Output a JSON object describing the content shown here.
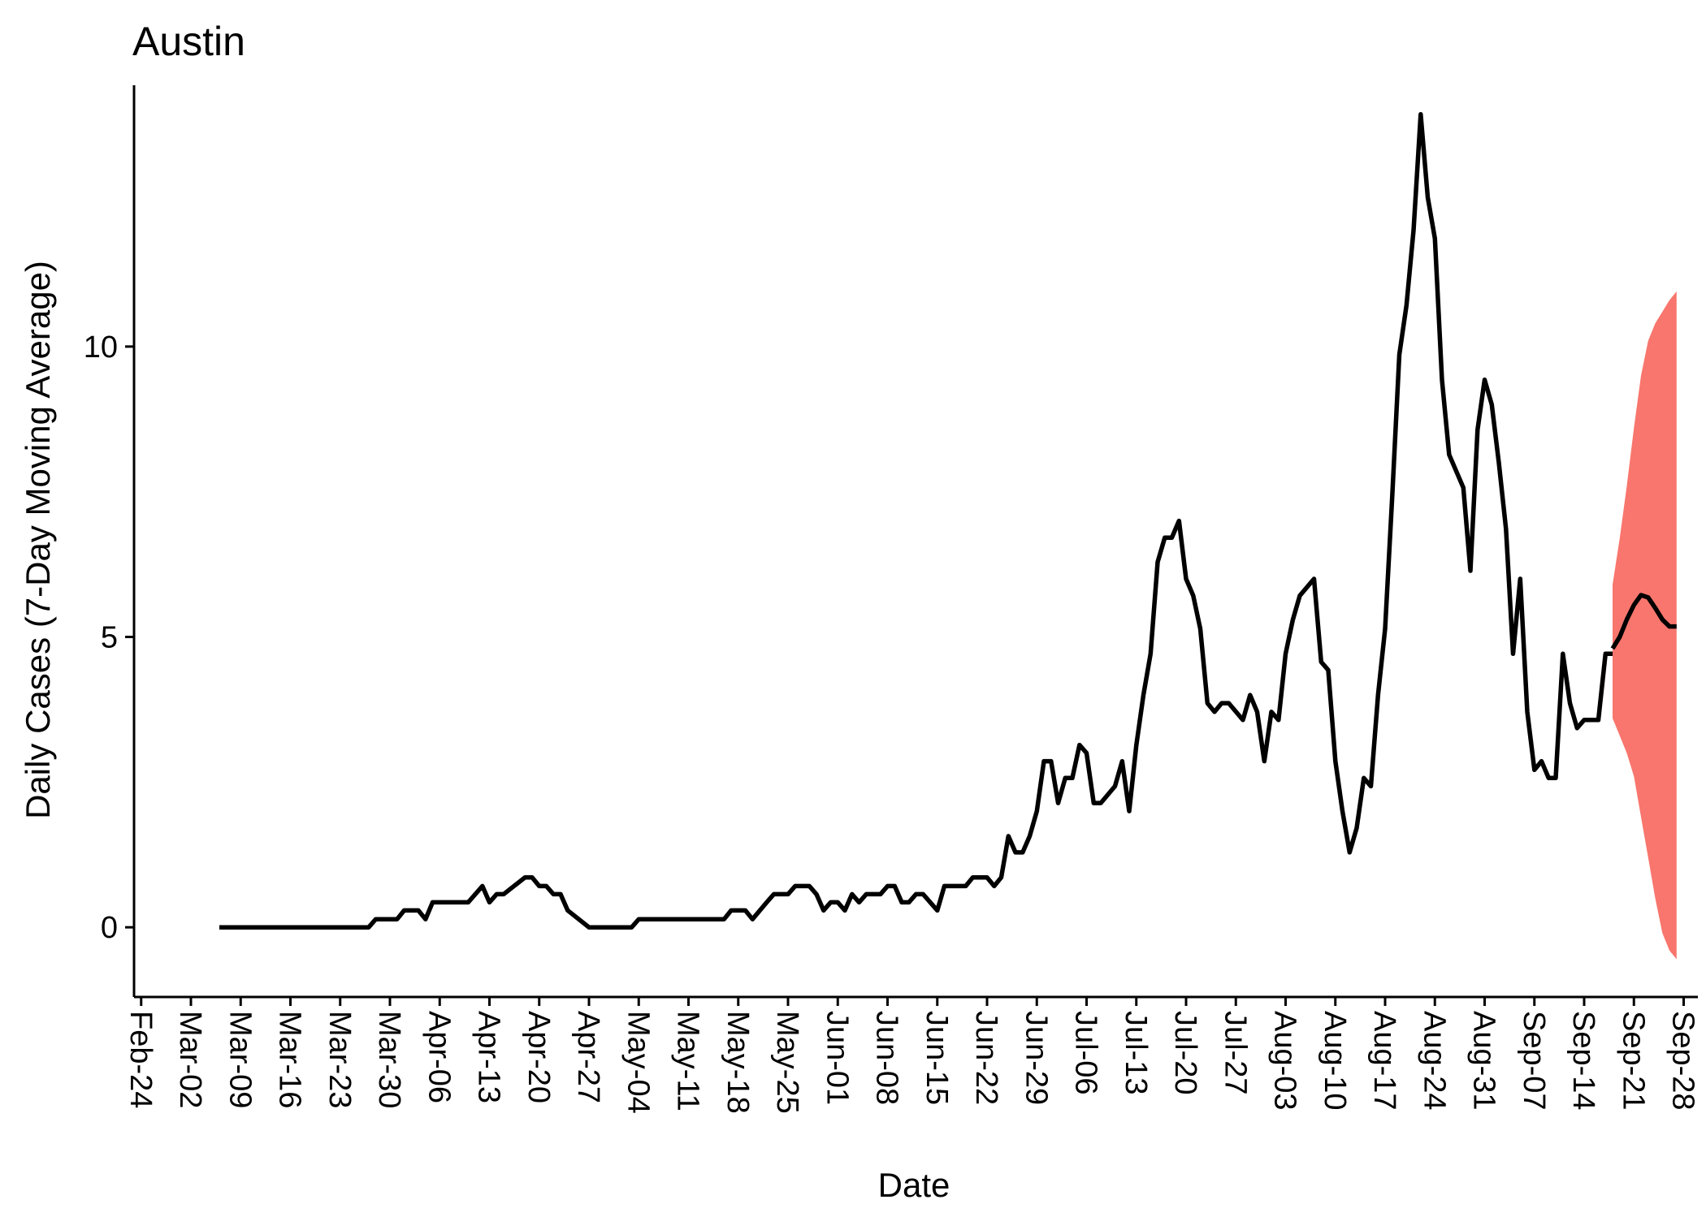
{
  "chart_data": {
    "type": "line",
    "title": "Austin",
    "xlabel": "Date",
    "ylabel": "Daily Cases (7-Day Moving Average)",
    "x_tick_labels": [
      "Feb-24",
      "Mar-02",
      "Mar-09",
      "Mar-16",
      "Mar-23",
      "Mar-30",
      "Apr-06",
      "Apr-13",
      "Apr-20",
      "Apr-27",
      "May-04",
      "May-11",
      "May-18",
      "May-25",
      "Jun-01",
      "Jun-08",
      "Jun-15",
      "Jun-22",
      "Jun-29",
      "Jul-06",
      "Jul-13",
      "Jul-20",
      "Jul-27",
      "Aug-03",
      "Aug-10",
      "Aug-17",
      "Aug-24",
      "Aug-31",
      "Sep-07",
      "Sep-14",
      "Sep-21",
      "Sep-28"
    ],
    "y_ticks": [
      0,
      5,
      10
    ],
    "ylim": [
      -1.2,
      14.5
    ],
    "xlim": [
      "2020-02-23",
      "2020-09-30"
    ],
    "grid": false,
    "series": [
      {
        "color": "#000000",
        "points": [
          [
            "2020-03-06",
            0
          ],
          [
            "2020-03-12",
            0
          ],
          [
            "2020-03-20",
            0
          ],
          [
            "2020-03-27",
            0
          ],
          [
            "2020-03-28",
            0.14
          ],
          [
            "2020-03-31",
            0.14
          ],
          [
            "2020-04-01",
            0.29
          ],
          [
            "2020-04-03",
            0.29
          ],
          [
            "2020-04-04",
            0.14
          ],
          [
            "2020-04-05",
            0.43
          ],
          [
            "2020-04-10",
            0.43
          ],
          [
            "2020-04-12",
            0.71
          ],
          [
            "2020-04-13",
            0.43
          ],
          [
            "2020-04-14",
            0.57
          ],
          [
            "2020-04-15",
            0.57
          ],
          [
            "2020-04-18",
            0.86
          ],
          [
            "2020-04-19",
            0.86
          ],
          [
            "2020-04-20",
            0.71
          ],
          [
            "2020-04-21",
            0.71
          ],
          [
            "2020-04-22",
            0.57
          ],
          [
            "2020-04-23",
            0.57
          ],
          [
            "2020-04-24",
            0.29
          ],
          [
            "2020-04-27",
            0
          ],
          [
            "2020-05-03",
            0
          ],
          [
            "2020-05-04",
            0.14
          ],
          [
            "2020-05-16",
            0.14
          ],
          [
            "2020-05-17",
            0.29
          ],
          [
            "2020-05-19",
            0.29
          ],
          [
            "2020-05-20",
            0.14
          ],
          [
            "2020-05-22",
            0.43
          ],
          [
            "2020-05-23",
            0.57
          ],
          [
            "2020-05-25",
            0.57
          ],
          [
            "2020-05-26",
            0.71
          ],
          [
            "2020-05-28",
            0.71
          ],
          [
            "2020-05-29",
            0.57
          ],
          [
            "2020-05-30",
            0.29
          ],
          [
            "2020-05-31",
            0.43
          ],
          [
            "2020-06-01",
            0.43
          ],
          [
            "2020-06-02",
            0.29
          ],
          [
            "2020-06-03",
            0.57
          ],
          [
            "2020-06-04",
            0.43
          ],
          [
            "2020-06-05",
            0.57
          ],
          [
            "2020-06-07",
            0.57
          ],
          [
            "2020-06-08",
            0.71
          ],
          [
            "2020-06-09",
            0.71
          ],
          [
            "2020-06-10",
            0.43
          ],
          [
            "2020-06-11",
            0.43
          ],
          [
            "2020-06-12",
            0.57
          ],
          [
            "2020-06-13",
            0.57
          ],
          [
            "2020-06-15",
            0.29
          ],
          [
            "2020-06-16",
            0.71
          ],
          [
            "2020-06-19",
            0.71
          ],
          [
            "2020-06-20",
            0.86
          ],
          [
            "2020-06-22",
            0.86
          ],
          [
            "2020-06-23",
            0.71
          ],
          [
            "2020-06-24",
            0.86
          ],
          [
            "2020-06-25",
            1.57
          ],
          [
            "2020-06-26",
            1.29
          ],
          [
            "2020-06-27",
            1.29
          ],
          [
            "2020-06-28",
            1.57
          ],
          [
            "2020-06-29",
            2.0
          ],
          [
            "2020-06-30",
            2.86
          ],
          [
            "2020-07-01",
            2.86
          ],
          [
            "2020-07-02",
            2.14
          ],
          [
            "2020-07-03",
            2.57
          ],
          [
            "2020-07-04",
            2.57
          ],
          [
            "2020-07-05",
            3.14
          ],
          [
            "2020-07-06",
            3.0
          ],
          [
            "2020-07-07",
            2.14
          ],
          [
            "2020-07-08",
            2.14
          ],
          [
            "2020-07-10",
            2.43
          ],
          [
            "2020-07-11",
            2.86
          ],
          [
            "2020-07-12",
            2.0
          ],
          [
            "2020-07-13",
            3.14
          ],
          [
            "2020-07-14",
            4.0
          ],
          [
            "2020-07-15",
            4.71
          ],
          [
            "2020-07-16",
            6.29
          ],
          [
            "2020-07-17",
            6.71
          ],
          [
            "2020-07-18",
            6.71
          ],
          [
            "2020-07-19",
            7.0
          ],
          [
            "2020-07-20",
            6.0
          ],
          [
            "2020-07-21",
            5.71
          ],
          [
            "2020-07-22",
            5.14
          ],
          [
            "2020-07-23",
            3.86
          ],
          [
            "2020-07-24",
            3.71
          ],
          [
            "2020-07-25",
            3.86
          ],
          [
            "2020-07-26",
            3.86
          ],
          [
            "2020-07-28",
            3.57
          ],
          [
            "2020-07-29",
            4.0
          ],
          [
            "2020-07-30",
            3.71
          ],
          [
            "2020-07-31",
            2.86
          ],
          [
            "2020-08-01",
            3.71
          ],
          [
            "2020-08-02",
            3.57
          ],
          [
            "2020-08-03",
            4.71
          ],
          [
            "2020-08-04",
            5.29
          ],
          [
            "2020-08-05",
            5.71
          ],
          [
            "2020-08-07",
            6.0
          ],
          [
            "2020-08-08",
            4.57
          ],
          [
            "2020-08-09",
            4.43
          ],
          [
            "2020-08-10",
            2.86
          ],
          [
            "2020-08-11",
            2.0
          ],
          [
            "2020-08-12",
            1.29
          ],
          [
            "2020-08-13",
            1.71
          ],
          [
            "2020-08-14",
            2.57
          ],
          [
            "2020-08-15",
            2.43
          ],
          [
            "2020-08-16",
            4.0
          ],
          [
            "2020-08-17",
            5.14
          ],
          [
            "2020-08-18",
            7.43
          ],
          [
            "2020-08-19",
            9.86
          ],
          [
            "2020-08-20",
            10.71
          ],
          [
            "2020-08-21",
            12.0
          ],
          [
            "2020-08-22",
            14.0
          ],
          [
            "2020-08-23",
            12.57
          ],
          [
            "2020-08-24",
            11.86
          ],
          [
            "2020-08-25",
            9.43
          ],
          [
            "2020-08-26",
            8.14
          ],
          [
            "2020-08-28",
            7.57
          ],
          [
            "2020-08-29",
            6.14
          ],
          [
            "2020-08-30",
            8.57
          ],
          [
            "2020-08-31",
            9.43
          ],
          [
            "2020-09-01",
            9.0
          ],
          [
            "2020-09-02",
            8.0
          ],
          [
            "2020-09-03",
            6.86
          ],
          [
            "2020-09-04",
            4.71
          ],
          [
            "2020-09-05",
            6.0
          ],
          [
            "2020-09-06",
            3.71
          ],
          [
            "2020-09-07",
            2.71
          ],
          [
            "2020-09-08",
            2.86
          ],
          [
            "2020-09-09",
            2.57
          ],
          [
            "2020-09-10",
            2.57
          ],
          [
            "2020-09-11",
            4.71
          ],
          [
            "2020-09-12",
            3.86
          ],
          [
            "2020-09-13",
            3.43
          ],
          [
            "2020-09-14",
            3.57
          ],
          [
            "2020-09-16",
            3.57
          ],
          [
            "2020-09-17",
            4.71
          ],
          [
            "2020-09-18",
            4.71
          ]
        ]
      },
      {
        "color": "#000000",
        "points": [
          [
            "2020-09-18",
            4.8
          ],
          [
            "2020-09-19",
            5.0
          ],
          [
            "2020-09-20",
            5.3
          ],
          [
            "2020-09-21",
            5.55
          ],
          [
            "2020-09-22",
            5.72
          ],
          [
            "2020-09-23",
            5.68
          ],
          [
            "2020-09-24",
            5.5
          ],
          [
            "2020-09-25",
            5.3
          ],
          [
            "2020-09-26",
            5.18
          ],
          [
            "2020-09-27",
            5.18
          ]
        ]
      }
    ],
    "ribbon": {
      "color": "#F8766D",
      "points": [
        [
          "2020-09-18",
          3.6,
          5.9
        ],
        [
          "2020-09-19",
          3.3,
          6.7
        ],
        [
          "2020-09-20",
          3.0,
          7.6
        ],
        [
          "2020-09-21",
          2.6,
          8.6
        ],
        [
          "2020-09-22",
          1.9,
          9.5
        ],
        [
          "2020-09-23",
          1.2,
          10.1
        ],
        [
          "2020-09-24",
          0.5,
          10.4
        ],
        [
          "2020-09-25",
          -0.1,
          10.6
        ],
        [
          "2020-09-26",
          -0.4,
          10.8
        ],
        [
          "2020-09-27",
          -0.55,
          10.95
        ]
      ]
    }
  }
}
